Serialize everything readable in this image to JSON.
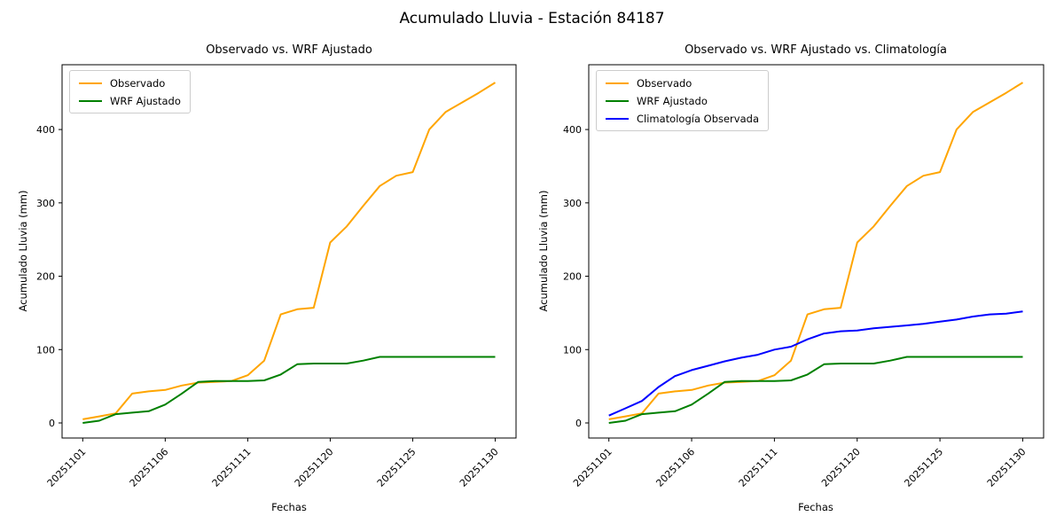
{
  "figure": {
    "suptitle": "Acumulado Lluvia - Estación 84187",
    "background": "#ffffff",
    "text_color": "#000000"
  },
  "chart_data": [
    {
      "type": "line",
      "title": "Observado vs. WRF Ajustado",
      "xlabel": "Fechas",
      "ylabel": "Acumulado Lluvia (mm)",
      "grid": false,
      "legend_position": "upper-left",
      "yticks": [
        0,
        100,
        200,
        300,
        400
      ],
      "ylim": [
        -23,
        486
      ],
      "x": [
        "20251101",
        "20251102",
        "20251103",
        "20251104",
        "20251105",
        "20251106",
        "20251107",
        "20251108",
        "20251109",
        "20251110",
        "20251111",
        "20251116",
        "20251117",
        "20251118",
        "20251119",
        "20251120",
        "20251121",
        "20251122",
        "20251123",
        "20251124",
        "20251125",
        "20251126",
        "20251127",
        "20251128",
        "20251129",
        "20251130"
      ],
      "xticks": [
        "20251101",
        "20251106",
        "20251111",
        "20251120",
        "20251125",
        "20251130"
      ],
      "series": [
        {
          "name": "Observado",
          "color": "#FFA500",
          "values": [
            5,
            9,
            13,
            40,
            43,
            45,
            51,
            55,
            56,
            57,
            65,
            85,
            148,
            155,
            157,
            246,
            268,
            296,
            323,
            337,
            342,
            400,
            424,
            437,
            450,
            464
          ]
        },
        {
          "name": "WRF Ajustado",
          "color": "#008000",
          "values": [
            0,
            3,
            12,
            14,
            16,
            25,
            40,
            56,
            57,
            57,
            57,
            58,
            66,
            80,
            81,
            81,
            81,
            85,
            90,
            90,
            90,
            90,
            90,
            90,
            90,
            90
          ]
        }
      ]
    },
    {
      "type": "line",
      "title": "Observado vs. WRF Ajustado vs. Climatología",
      "xlabel": "Fechas",
      "ylabel": "Acumulado Lluvia (mm)",
      "grid": false,
      "legend_position": "upper-left",
      "yticks": [
        0,
        100,
        200,
        300,
        400
      ],
      "ylim": [
        -23,
        486
      ],
      "x": [
        "20251101",
        "20251102",
        "20251103",
        "20251104",
        "20251105",
        "20251106",
        "20251107",
        "20251108",
        "20251109",
        "20251110",
        "20251111",
        "20251116",
        "20251117",
        "20251118",
        "20251119",
        "20251120",
        "20251121",
        "20251122",
        "20251123",
        "20251124",
        "20251125",
        "20251126",
        "20251127",
        "20251128",
        "20251129",
        "20251130"
      ],
      "xticks": [
        "20251101",
        "20251106",
        "20251111",
        "20251120",
        "20251125",
        "20251130"
      ],
      "series": [
        {
          "name": "Observado",
          "color": "#FFA500",
          "values": [
            5,
            9,
            13,
            40,
            43,
            45,
            51,
            55,
            56,
            57,
            65,
            85,
            148,
            155,
            157,
            246,
            268,
            296,
            323,
            337,
            342,
            400,
            424,
            437,
            450,
            464
          ]
        },
        {
          "name": "WRF Ajustado",
          "color": "#008000",
          "values": [
            0,
            3,
            12,
            14,
            16,
            25,
            40,
            56,
            57,
            57,
            57,
            58,
            66,
            80,
            81,
            81,
            81,
            85,
            90,
            90,
            90,
            90,
            90,
            90,
            90,
            90
          ]
        },
        {
          "name": "Climatología Observada",
          "color": "#0000FF",
          "values": [
            10,
            20,
            30,
            49,
            64,
            72,
            78,
            84,
            89,
            93,
            100,
            104,
            114,
            122,
            125,
            126,
            129,
            131,
            133,
            135,
            138,
            141,
            145,
            148,
            149,
            152
          ]
        }
      ]
    }
  ]
}
